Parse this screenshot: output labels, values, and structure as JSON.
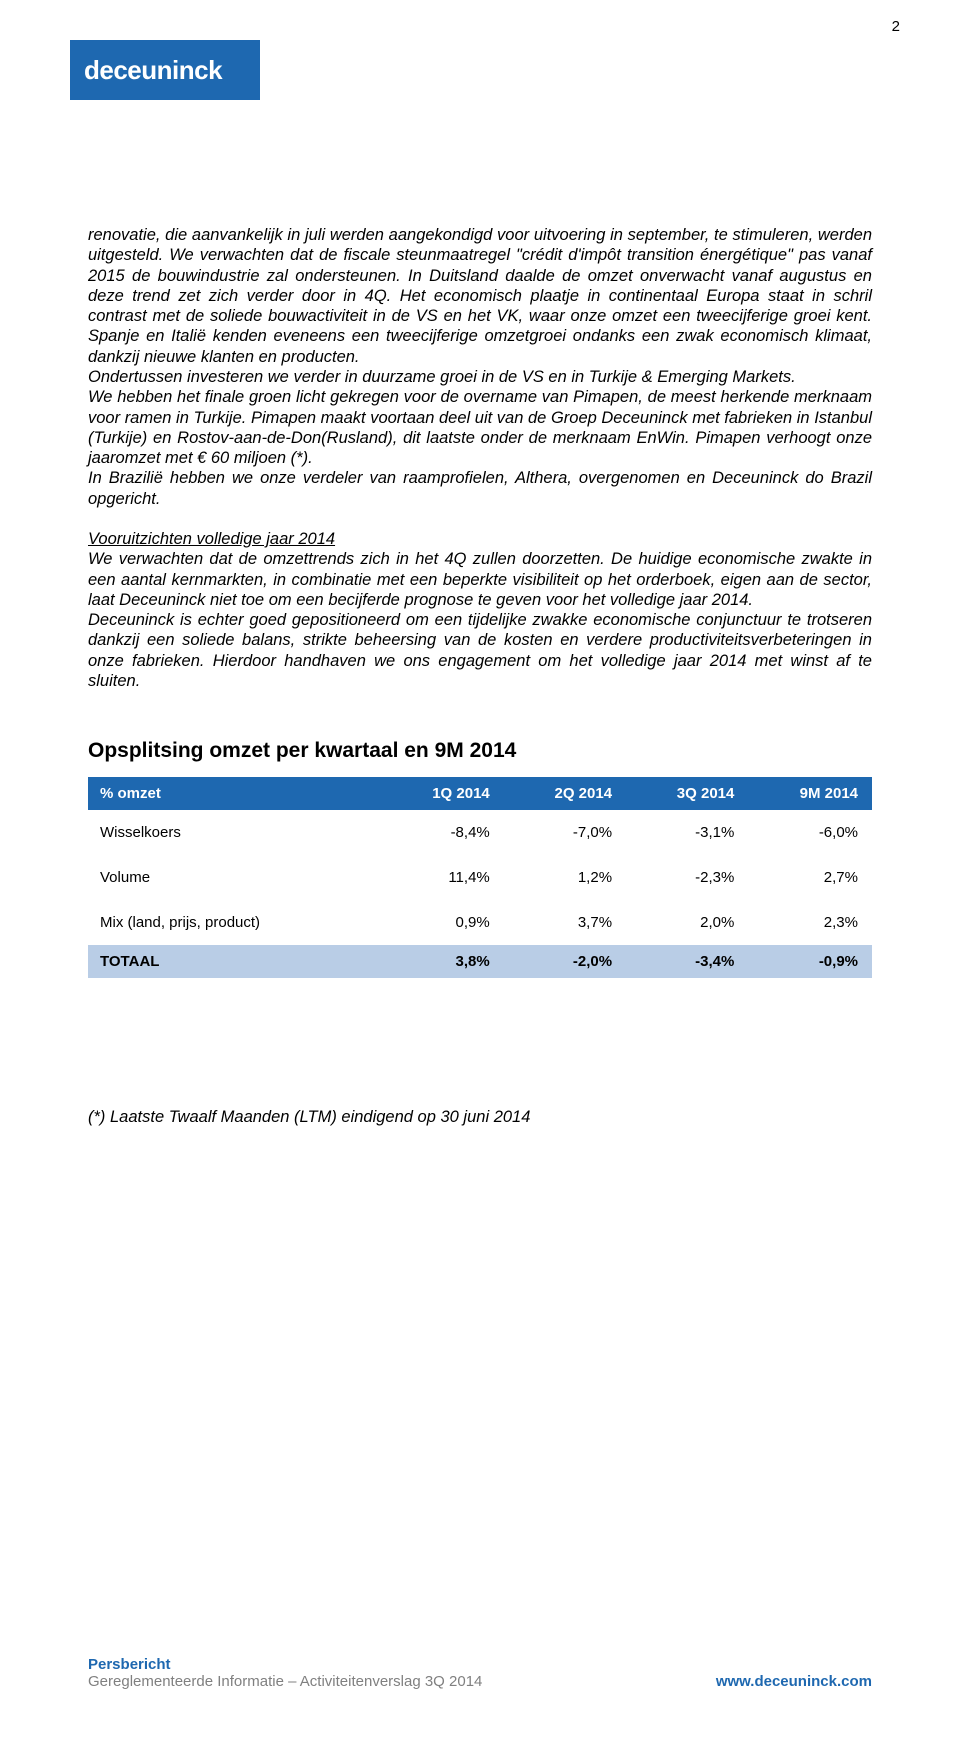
{
  "page_number": "2",
  "logo": {
    "text": "deceuninck",
    "bg": "#1e68b0",
    "fg": "#ffffff"
  },
  "paragraph1": "renovatie, die aanvankelijk in juli werden aangekondigd voor uitvoering in september, te stimuleren, werden uitgesteld. We verwachten dat de fiscale steunmaatregel \"crédit d'impôt transition énergétique\" pas vanaf 2015 de bouwindustrie zal ondersteunen. In Duitsland daalde de omzet onverwacht vanaf augustus en deze trend zet zich verder door in 4Q. Het economisch plaatje in continentaal Europa staat in schril contrast met de soliede bouwactiviteit in de VS en het VK, waar onze omzet een tweecijferige groei kent. Spanje en Italië kenden eveneens een tweecijferige omzetgroei ondanks een zwak economisch klimaat, dankzij nieuwe klanten en producten.",
  "paragraph1b": "Ondertussen investeren we verder in duurzame groei in de VS en in Turkije & Emerging Markets.",
  "paragraph1c": "We hebben het finale groen licht gekregen voor de overname van Pimapen, de meest herkende merknaam voor ramen in Turkije. Pimapen maakt voortaan deel uit van de Groep Deceuninck met fabrieken in Istanbul (Turkije) en Rostov-aan-de-Don(Rusland), dit laatste onder de merknaam EnWin. Pimapen verhoogt onze jaaromzet met € 60 miljoen (*).",
  "paragraph1d": "In Brazilië hebben we onze verdeler van raamprofielen, Althera, overgenomen en Deceuninck do Brazil opgericht.",
  "outlook_heading": "Vooruitzichten volledige jaar 2014",
  "outlook_p1": "We verwachten dat de omzettrends zich in het 4Q zullen doorzetten. De huidige economische zwakte in een aantal kernmarkten, in combinatie met een beperkte visibiliteit op het orderboek, eigen aan de sector, laat Deceuninck niet toe om een becijferde prognose te geven voor het volledige jaar 2014.",
  "outlook_p2": "Deceuninck is echter goed gepositioneerd om een tijdelijke zwakke economische conjunctuur te trotseren dankzij een soliede balans, strikte beheersing van de kosten en verdere productiviteitsverbeteringen in onze fabrieken. Hierdoor handhaven we ons engagement om het volledige jaar 2014 met winst af te sluiten.",
  "table_title": "Opsplitsing omzet per kwartaal en 9M 2014",
  "table": {
    "header_bg": "#1e68b0",
    "header_fg": "#ffffff",
    "total_bg": "#b9cde6",
    "columns": [
      "% omzet",
      "1Q 2014",
      "2Q 2014",
      "3Q 2014",
      "9M 2014"
    ],
    "rows": [
      {
        "label": "Wisselkoers",
        "values": [
          "-8,4%",
          "-7,0%",
          "-3,1%",
          "-6,0%"
        ]
      },
      {
        "label": "Volume",
        "values": [
          "11,4%",
          "1,2%",
          "-2,3%",
          "2,7%"
        ]
      },
      {
        "label": "Mix (land, prijs, product)",
        "values": [
          "0,9%",
          "3,7%",
          "2,0%",
          "2,3%"
        ]
      }
    ],
    "total": {
      "label": "TOTAAL",
      "values": [
        "3,8%",
        "-2,0%",
        "-3,4%",
        "-0,9%"
      ]
    }
  },
  "footnote": "(*) Laatste Twaalf Maanden (LTM) eindigend op 30 juni 2014",
  "footer": {
    "line1": "Persbericht",
    "line2": "Gereglementeerde Informatie – Activiteitenverslag 3Q 2014",
    "url": "www.deceuninck.com",
    "accent_color": "#1e68b0",
    "muted_color": "#808080"
  }
}
